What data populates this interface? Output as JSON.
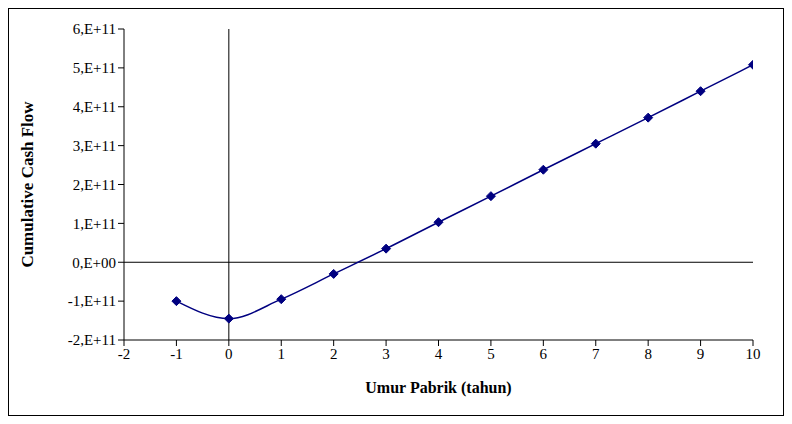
{
  "chart_data": {
    "type": "line",
    "x_label": "Umur Pabrik (tahun)",
    "y_label": "Cumulative Cash Flow",
    "x": [
      -1,
      0,
      1,
      2,
      3,
      4,
      5,
      6,
      7,
      8,
      9,
      10
    ],
    "values": [
      -100000000000,
      -145000000000,
      -95000000000,
      -30000000000,
      35000000000,
      103000000000,
      170000000000,
      238000000000,
      305000000000,
      372000000000,
      440000000000,
      508000000000
    ],
    "color": "#000080",
    "marker": "diamond",
    "xlim": [
      -2,
      10
    ],
    "xticks": [
      -2,
      -1,
      0,
      1,
      2,
      3,
      4,
      5,
      6,
      7,
      8,
      9,
      10
    ],
    "ylim": [
      -200000000000,
      600000000000
    ],
    "yticks": [
      {
        "value": -200000000000,
        "label": "-2,E+11"
      },
      {
        "value": -100000000000,
        "label": "-1,E+11"
      },
      {
        "value": 0,
        "label": "0,E+00"
      },
      {
        "value": 100000000000,
        "label": "1,E+11"
      },
      {
        "value": 200000000000,
        "label": "2,E+11"
      },
      {
        "value": 300000000000,
        "label": "3,E+11"
      },
      {
        "value": 400000000000,
        "label": "4,E+11"
      },
      {
        "value": 500000000000,
        "label": "5,E+11"
      },
      {
        "value": 600000000000,
        "label": "6,E+11"
      }
    ],
    "grid": false
  }
}
